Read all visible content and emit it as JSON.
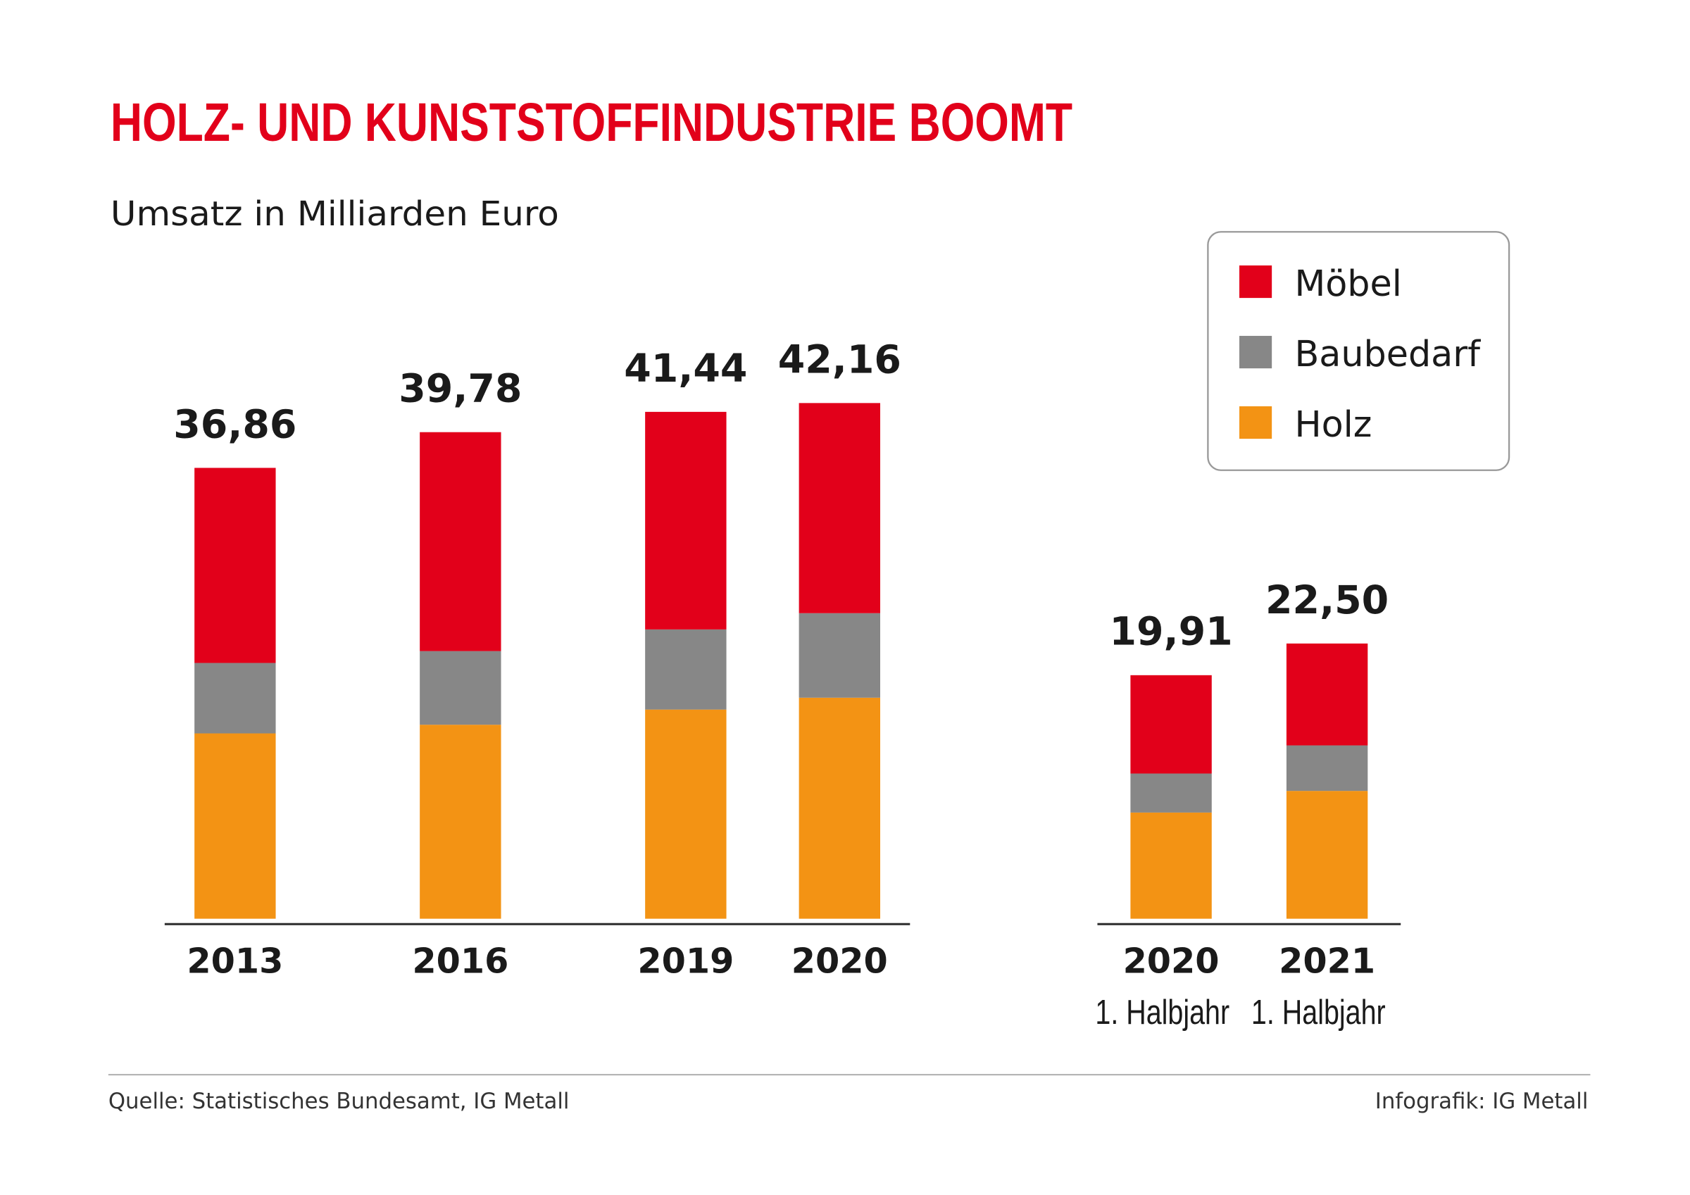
{
  "chart_data": {
    "type": "bar",
    "stacked": true,
    "title": "HOLZ- UND KUNSTSTOFFINDUSTRIE BOOMT",
    "subtitle": "Umsatz in Milliarden Euro",
    "groups": [
      {
        "categories": [
          {
            "label": "2013",
            "sublabel": "",
            "total_label": "36,86",
            "total": 36.86
          },
          {
            "label": "2016",
            "sublabel": "",
            "total_label": "39,78",
            "total": 39.78
          },
          {
            "label": "2019",
            "sublabel": "",
            "total_label": "41,44",
            "total": 41.44
          },
          {
            "label": "2020",
            "sublabel": "",
            "total_label": "42,16",
            "total": 42.16
          }
        ]
      },
      {
        "categories": [
          {
            "label": "2020",
            "sublabel": "1. Halbjahr",
            "total_label": "19,91",
            "total": 19.91
          },
          {
            "label": "2021",
            "sublabel": "1. Halbjahr",
            "total_label": "22,50",
            "total": 22.5
          }
        ]
      }
    ],
    "series": [
      {
        "name": "Holz",
        "color": "#f39314",
        "values": [
          15.15,
          15.86,
          17.1,
          18.07,
          8.68,
          10.45
        ]
      },
      {
        "name": "Baubedarf",
        "color": "#878787",
        "values": [
          5.76,
          6.02,
          6.55,
          6.91,
          3.19,
          3.72
        ]
      },
      {
        "name": "Möbel",
        "color": "#e2001a",
        "values": [
          15.95,
          17.9,
          17.79,
          17.18,
          8.04,
          8.33
        ]
      }
    ],
    "legend_order": [
      "Möbel",
      "Baubedarf",
      "Holz"
    ],
    "legend_position": "top-right",
    "grid": false,
    "ylim": [
      0,
      45
    ]
  },
  "footer": {
    "source": "Quelle: Statistisches Bundesamt, IG Metall",
    "credit": "Infografik: IG Metall"
  }
}
